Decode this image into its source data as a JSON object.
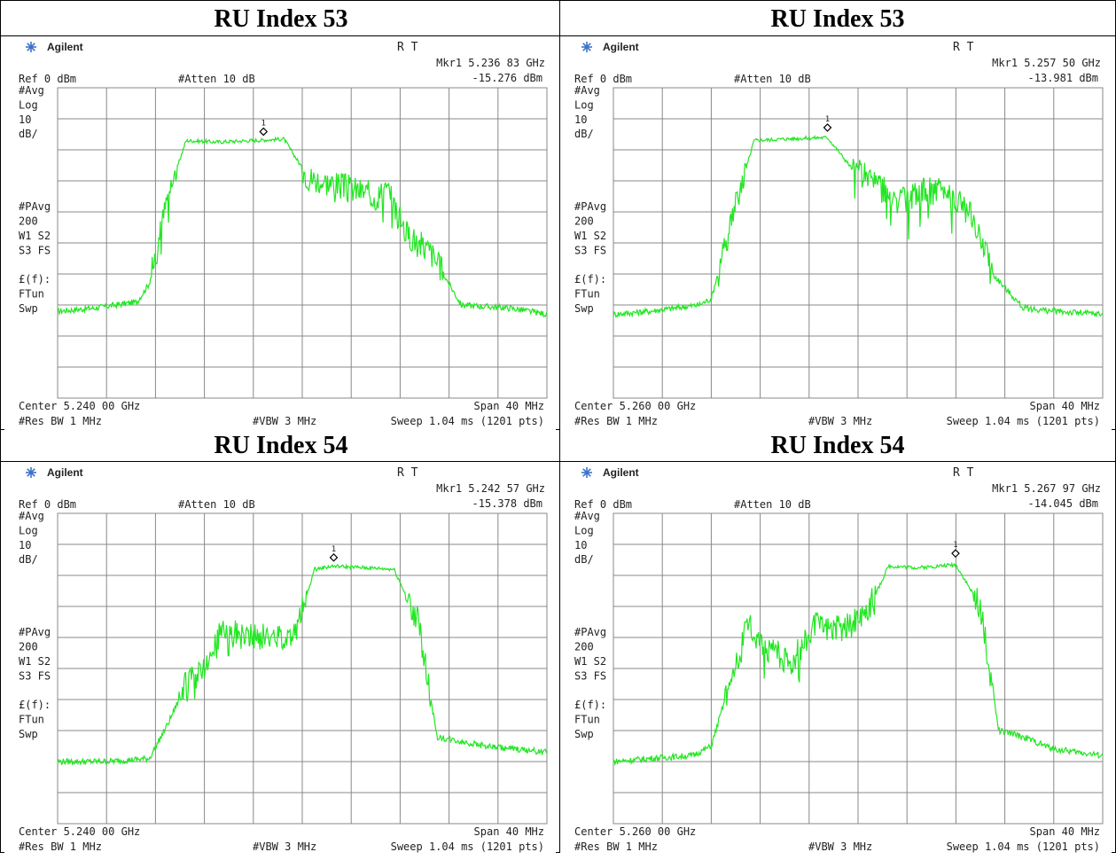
{
  "colors": {
    "trace": "#22e622",
    "grid": "#888888",
    "text": "#222222",
    "logo": "#3a73c8"
  },
  "labels": {
    "brand": "Agilent",
    "status": "R  T",
    "ref": "Ref 0 dBm",
    "atten": "#Atten 10 dB",
    "left_col": [
      "#Avg",
      "Log",
      "10",
      "dB/",
      "",
      "",
      "",
      "",
      "#PAvg",
      "200",
      "W1  S2",
      "S3  FS",
      "",
      "£(f):",
      "FTun",
      "Swp"
    ],
    "span": "Span 40 MHz",
    "res_bw": "#Res BW 1 MHz",
    "vbw": "#VBW 3 MHz",
    "sweep": "Sweep 1.04 ms (1201 pts)",
    "marker_symbol": "1"
  },
  "panels": [
    {
      "title": "RU Index 53",
      "mkr_freq": "Mkr1  5.236 83 GHz",
      "mkr_amp": "-15.276 dBm",
      "center": "Center 5.240 00 GHz"
    },
    {
      "title": "RU Index 53",
      "mkr_freq": "Mkr1  5.257 50 GHz",
      "mkr_amp": "-13.981 dBm",
      "center": "Center 5.260 00 GHz"
    },
    {
      "title": "RU Index 54",
      "mkr_freq": "Mkr1  5.242 57 GHz",
      "mkr_amp": "-15.378 dBm",
      "center": "Center 5.240 00 GHz"
    },
    {
      "title": "RU Index 54",
      "mkr_freq": "Mkr1  5.267 97 GHz",
      "mkr_amp": "-14.045 dBm",
      "center": "Center 5.260 00 GHz"
    }
  ],
  "chart_data": [
    {
      "type": "line",
      "title": "RU Index 53",
      "xlabel": "Center 5.240 00 GHz / Span 40 MHz",
      "ylabel": "Ref 0 dBm, 10 dB/",
      "xlim": [
        5.22,
        5.26
      ],
      "ylim": [
        -100,
        0
      ],
      "grid": true,
      "marker": {
        "x": 5.23683,
        "y": -15.276
      },
      "series": [
        {
          "x": [
            5.22,
            5.223,
            5.2265,
            5.2275,
            5.229,
            5.2305,
            5.233,
            5.236,
            5.2385,
            5.2405,
            5.2425,
            5.2445,
            5.246,
            5.247,
            5.2485,
            5.2505,
            5.253,
            5.257,
            5.26
          ],
          "y": [
            -72,
            -71,
            -69,
            -63,
            -35,
            -17,
            -17.5,
            -17,
            -16.5,
            -29,
            -31,
            -33,
            -35,
            -33,
            -47,
            -53,
            -70,
            -71,
            -73
          ]
        }
      ]
    },
    {
      "type": "line",
      "title": "RU Index 53",
      "xlabel": "Center 5.260 00 GHz / Span 40 MHz",
      "ylabel": "Ref 0 dBm, 10 dB/",
      "xlim": [
        5.24,
        5.28
      ],
      "ylim": [
        -100,
        0
      ],
      "grid": true,
      "marker": {
        "x": 5.2575,
        "y": -13.981
      },
      "series": [
        {
          "x": [
            5.24,
            5.243,
            5.247,
            5.248,
            5.2495,
            5.2515,
            5.254,
            5.2575,
            5.2595,
            5.2615,
            5.2635,
            5.2655,
            5.2675,
            5.2695,
            5.271,
            5.2735,
            5.276,
            5.28
          ],
          "y": [
            -73,
            -72,
            -70,
            -68,
            -45,
            -17,
            -16.5,
            -16,
            -26,
            -30,
            -37,
            -33,
            -33,
            -43,
            -60,
            -71,
            -72,
            -73
          ]
        }
      ]
    },
    {
      "type": "line",
      "title": "RU Index 54",
      "xlabel": "Center 5.240 00 GHz / Span 40 MHz",
      "ylabel": "Ref 0 dBm, 10 dB/",
      "xlim": [
        5.22,
        5.26
      ],
      "ylim": [
        -100,
        0
      ],
      "grid": true,
      "marker": {
        "x": 5.24257,
        "y": -15.378
      },
      "series": [
        {
          "x": [
            5.22,
            5.224,
            5.2275,
            5.229,
            5.2305,
            5.232,
            5.2335,
            5.2355,
            5.238,
            5.2395,
            5.241,
            5.2425,
            5.245,
            5.2475,
            5.2495,
            5.251,
            5.255,
            5.26
          ],
          "y": [
            -80,
            -80,
            -79,
            -68,
            -55,
            -50,
            -37,
            -40,
            -40,
            -38,
            -18,
            -17,
            -17.5,
            -18,
            -35,
            -72,
            -75,
            -77
          ]
        }
      ]
    },
    {
      "type": "line",
      "title": "RU Index 54",
      "xlabel": "Center 5.260 00 GHz / Span 40 MHz",
      "ylabel": "Ref 0 dBm, 10 dB/",
      "xlim": [
        5.24,
        5.28
      ],
      "ylim": [
        -100,
        0
      ],
      "grid": true,
      "marker": {
        "x": 5.26797,
        "y": -14.045
      },
      "series": [
        {
          "x": [
            5.24,
            5.243,
            5.2465,
            5.248,
            5.2495,
            5.251,
            5.2525,
            5.2545,
            5.2565,
            5.2585,
            5.2605,
            5.2625,
            5.265,
            5.268,
            5.27,
            5.2715,
            5.2735,
            5.276,
            5.28
          ],
          "y": [
            -80,
            -79,
            -78,
            -75,
            -55,
            -36,
            -43,
            -48,
            -36,
            -37,
            -34,
            -17,
            -17.5,
            -16.5,
            -30,
            -70,
            -72,
            -76,
            -78
          ]
        }
      ]
    }
  ]
}
